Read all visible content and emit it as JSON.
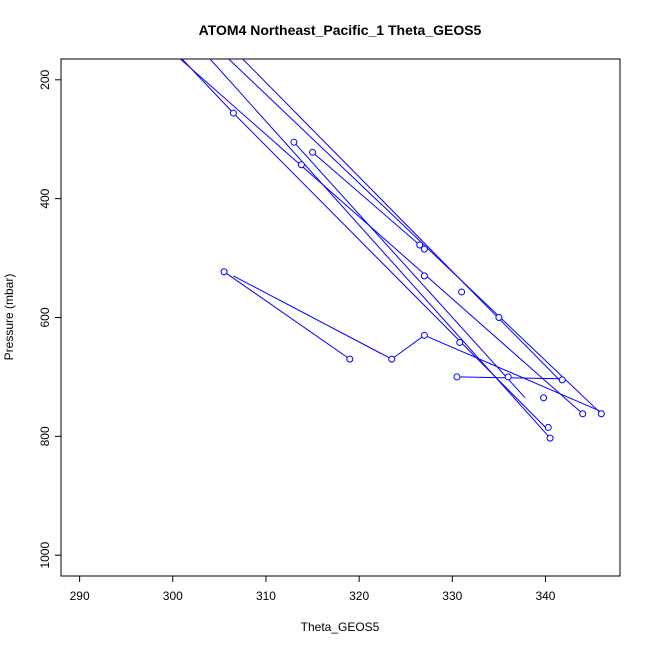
{
  "chart_data": {
    "type": "scatter",
    "title": "ATOM4 Northeast_Pacific_1 Theta_GEOS5",
    "xlabel": "Theta_GEOS5",
    "ylabel": "Pressure (mbar)",
    "xlim": [
      288,
      348
    ],
    "ylim": [
      1035,
      165
    ],
    "y_reversed": true,
    "x_ticks": [
      "290",
      "300",
      "310",
      "320",
      "330",
      "340"
    ],
    "y_ticks": [
      "200",
      "400",
      "600",
      "800",
      "1000"
    ],
    "grid": false,
    "legend": "none",
    "color": "#0000ff",
    "segments": [
      {
        "points": [
          [
            300.8,
            165
          ],
          [
            344.0,
            762
          ]
        ]
      },
      {
        "points": [
          [
            304.0,
            165
          ],
          [
            340.5,
            803
          ]
        ]
      },
      {
        "points": [
          [
            306.0,
            165
          ],
          [
            346.0,
            762
          ]
        ]
      },
      {
        "points": [
          [
            307.5,
            165
          ],
          [
            341.5,
            705
          ]
        ]
      },
      {
        "points": [
          [
            301.0,
            165
          ],
          [
            306.5,
            256
          ],
          [
            340.0,
            785
          ]
        ]
      },
      {
        "points": [
          [
            313.0,
            305
          ],
          [
            337.8,
            735
          ]
        ]
      },
      {
        "points": [
          [
            315.0,
            322
          ],
          [
            326.5,
            478
          ]
        ]
      },
      {
        "points": [
          [
            305.5,
            523
          ],
          [
            319.0,
            670
          ]
        ]
      },
      {
        "points": [
          [
            306.5,
            530
          ],
          [
            323.5,
            670
          ],
          [
            327.0,
            630
          ],
          [
            345.8,
            757
          ]
        ]
      },
      {
        "points": [
          [
            330.5,
            700
          ],
          [
            341.5,
            703
          ]
        ]
      }
    ],
    "points": [
      {
        "x": 306.5,
        "y": 256
      },
      {
        "x": 313.0,
        "y": 305
      },
      {
        "x": 315.0,
        "y": 322
      },
      {
        "x": 313.8,
        "y": 343
      },
      {
        "x": 326.5,
        "y": 478
      },
      {
        "x": 327.0,
        "y": 485
      },
      {
        "x": 305.5,
        "y": 523
      },
      {
        "x": 327.0,
        "y": 530
      },
      {
        "x": 331.0,
        "y": 557
      },
      {
        "x": 335.0,
        "y": 600
      },
      {
        "x": 327.0,
        "y": 630
      },
      {
        "x": 330.8,
        "y": 642
      },
      {
        "x": 319.0,
        "y": 670
      },
      {
        "x": 323.5,
        "y": 670
      },
      {
        "x": 330.5,
        "y": 700
      },
      {
        "x": 336.0,
        "y": 700
      },
      {
        "x": 341.8,
        "y": 705
      },
      {
        "x": 339.8,
        "y": 735
      },
      {
        "x": 344.0,
        "y": 762
      },
      {
        "x": 346.0,
        "y": 762
      },
      {
        "x": 340.3,
        "y": 785
      },
      {
        "x": 340.5,
        "y": 803
      }
    ]
  }
}
